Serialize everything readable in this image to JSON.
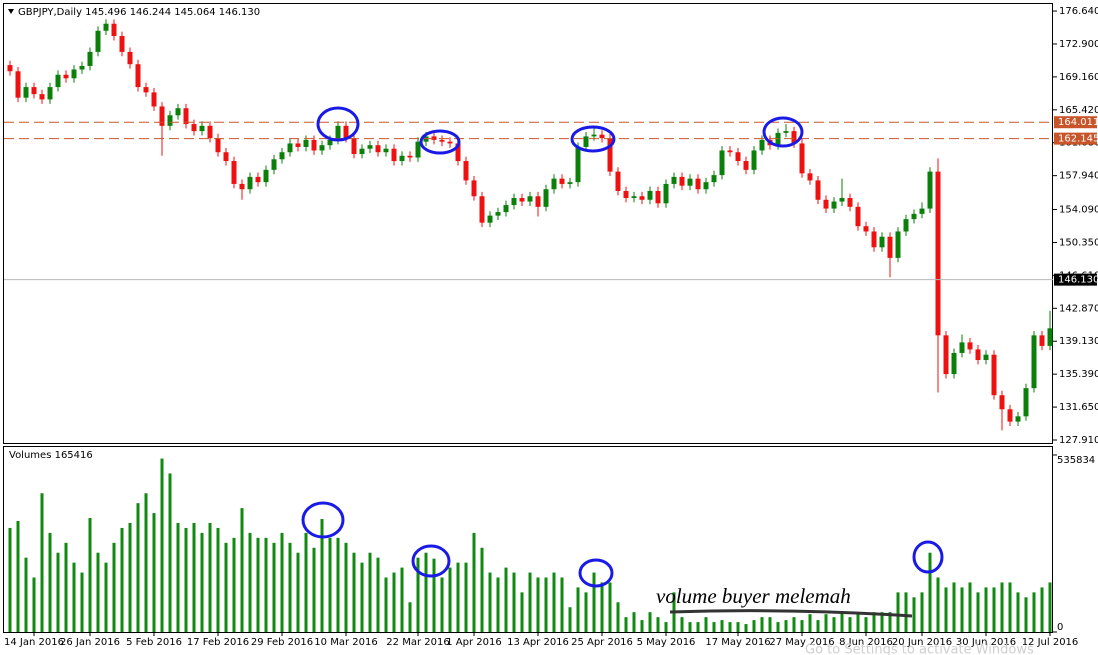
{
  "chart_data": {
    "type": "candlestick",
    "title": "GBPJPY,Daily  145.496 146.244 145.064 146.130",
    "categories": [
      null,
      null,
      null,
      "14 Jan 2016",
      null,
      null,
      null,
      null,
      null,
      null,
      "26 Jan 2016",
      null,
      null,
      null,
      null,
      null,
      null,
      null,
      "5 Feb 2016",
      null,
      null,
      null,
      null,
      null,
      null,
      null,
      "17 Feb 2016",
      null,
      null,
      null,
      null,
      null,
      null,
      null,
      "29 Feb 2016",
      null,
      null,
      null,
      null,
      null,
      null,
      null,
      "10 Mar 2016",
      null,
      null,
      null,
      null,
      null,
      null,
      null,
      null,
      "22 Mar 2016",
      null,
      null,
      null,
      null,
      null,
      null,
      "1 Apr 2016",
      null,
      null,
      null,
      null,
      null,
      null,
      null,
      "13 Apr 2016",
      null,
      null,
      null,
      null,
      null,
      null,
      null,
      "25 Apr 2016",
      null,
      null,
      null,
      null,
      null,
      null,
      null,
      "5 May 2016",
      null,
      null,
      null,
      null,
      null,
      null,
      null,
      null,
      "17 May 2016",
      null,
      null,
      null,
      null,
      null,
      null,
      null,
      "27 May 2016",
      null,
      null,
      null,
      null,
      null,
      null,
      null,
      "8 Jun 2016",
      null,
      null,
      null,
      null,
      null,
      null,
      "20 Jun 2016",
      null,
      null,
      null,
      null,
      null,
      null,
      null,
      "30 Jun 2016",
      null,
      null,
      null,
      null,
      null,
      null,
      null,
      "12 Jul 2016"
    ],
    "open": [
      170.5,
      169.8,
      166.8,
      168.0,
      167.2,
      166.6,
      168.0,
      169.4,
      169.0,
      170.0,
      170.4,
      172.0,
      174.4,
      175.2,
      173.8,
      172.0,
      170.6,
      168.0,
      167.4,
      165.8,
      163.6,
      164.8,
      165.6,
      163.8,
      163.0,
      163.6,
      162.2,
      160.6,
      159.6,
      157.0,
      156.4,
      157.8,
      157.2,
      158.6,
      159.8,
      160.6,
      161.6,
      161.2,
      162.0,
      160.8,
      161.4,
      162.0,
      163.6,
      162.2,
      160.4,
      161.0,
      161.4,
      160.6,
      161.0,
      159.6,
      160.2,
      160.0,
      161.8,
      162.4,
      162.0,
      161.8,
      161.6,
      159.6,
      157.4,
      155.6,
      152.6,
      153.4,
      153.8,
      154.6,
      155.4,
      155.0,
      155.6,
      154.4,
      156.4,
      157.6,
      157.0,
      157.2,
      161.2,
      162.4,
      162.6,
      162.2,
      158.4,
      156.2,
      155.4,
      155.6,
      155.2,
      156.2,
      154.8,
      157.0,
      157.8,
      156.8,
      157.6,
      156.4,
      157.2,
      158.0,
      160.8,
      160.6,
      159.6,
      158.6,
      160.8,
      162.0,
      161.4,
      162.8,
      163.0,
      161.6,
      158.2,
      157.4,
      155.2,
      154.2,
      155.0,
      155.4,
      154.4,
      152.2,
      151.6,
      149.8,
      151.0,
      148.6,
      151.6,
      153.0,
      153.6,
      154.2,
      158.4,
      139.8,
      135.4,
      137.8,
      139.0,
      138.2,
      137.0,
      137.6,
      133.0,
      131.4,
      130.0,
      130.6,
      133.8,
      139.8,
      138.6
    ],
    "high": [
      171.0,
      170.3,
      168.5,
      168.5,
      167.7,
      168.5,
      169.9,
      169.9,
      170.5,
      170.9,
      172.5,
      174.9,
      175.7,
      175.7,
      174.3,
      172.5,
      171.1,
      168.5,
      167.9,
      166.3,
      165.3,
      166.1,
      166.1,
      164.3,
      164.1,
      164.1,
      162.7,
      161.1,
      160.1,
      157.5,
      158.3,
      158.3,
      159.1,
      160.3,
      161.1,
      162.1,
      162.1,
      162.5,
      162.5,
      161.9,
      162.5,
      164.1,
      164.1,
      162.7,
      161.5,
      161.9,
      161.9,
      161.5,
      161.5,
      160.7,
      160.7,
      162.3,
      162.9,
      162.9,
      162.5,
      162.3,
      162.1,
      160.1,
      157.9,
      156.1,
      153.9,
      154.3,
      155.1,
      155.9,
      155.9,
      156.1,
      156.1,
      156.9,
      158.1,
      158.1,
      157.7,
      161.7,
      162.9,
      163.3,
      163.1,
      162.7,
      158.9,
      156.7,
      156.1,
      156.1,
      156.7,
      156.7,
      157.5,
      158.3,
      158.3,
      158.1,
      158.1,
      157.7,
      158.5,
      161.3,
      161.3,
      161.1,
      160.1,
      161.3,
      162.5,
      162.5,
      163.3,
      163.8,
      163.5,
      162.1,
      158.7,
      157.9,
      155.7,
      155.5,
      157.6,
      155.9,
      154.9,
      152.7,
      152.1,
      151.5,
      151.5,
      152.1,
      153.5,
      154.1,
      154.9,
      158.9,
      159.9,
      140.3,
      138.3,
      139.9,
      139.5,
      138.7,
      138.1,
      138.1,
      133.5,
      131.9,
      131.1,
      134.3,
      140.3,
      140.3,
      142.6
    ],
    "low": [
      169.3,
      166.3,
      166.3,
      166.7,
      166.1,
      166.1,
      167.5,
      168.5,
      168.5,
      169.5,
      169.9,
      171.5,
      173.9,
      173.3,
      171.5,
      170.1,
      167.5,
      166.9,
      165.3,
      160.2,
      163.1,
      164.3,
      163.3,
      162.5,
      162.5,
      161.7,
      160.1,
      159.1,
      156.5,
      155.2,
      155.9,
      156.7,
      156.7,
      158.1,
      159.3,
      160.1,
      160.7,
      160.7,
      160.3,
      160.3,
      160.9,
      161.5,
      161.7,
      159.9,
      159.9,
      160.5,
      160.1,
      160.1,
      159.1,
      159.1,
      159.5,
      159.5,
      161.3,
      161.5,
      161.3,
      161.1,
      159.1,
      156.9,
      155.1,
      152.1,
      152.1,
      152.9,
      153.3,
      154.1,
      154.5,
      154.5,
      153.3,
      153.9,
      155.9,
      156.5,
      156.5,
      156.7,
      160.7,
      161.9,
      161.7,
      157.9,
      155.7,
      154.9,
      154.9,
      154.7,
      154.7,
      154.3,
      154.3,
      156.5,
      156.3,
      156.3,
      155.9,
      155.9,
      156.7,
      157.5,
      160.1,
      159.1,
      158.1,
      158.1,
      160.3,
      160.9,
      160.9,
      162.3,
      161.1,
      157.7,
      156.9,
      154.7,
      153.7,
      153.7,
      154.5,
      153.9,
      151.7,
      151.1,
      149.3,
      149.3,
      146.4,
      148.1,
      151.1,
      152.5,
      153.1,
      153.7,
      133.3,
      134.9,
      134.9,
      137.3,
      137.7,
      136.5,
      136.5,
      132.5,
      129.0,
      129.5,
      129.5,
      130.1,
      133.3,
      138.1,
      138.1
    ],
    "close": [
      169.8,
      166.8,
      168.0,
      167.2,
      166.6,
      168.0,
      169.4,
      169.0,
      170.0,
      170.4,
      172.0,
      174.4,
      175.2,
      173.8,
      172.0,
      170.6,
      168.0,
      167.4,
      165.8,
      163.6,
      164.8,
      165.6,
      163.8,
      163.0,
      163.6,
      162.2,
      160.6,
      159.6,
      157.0,
      156.4,
      157.8,
      157.2,
      158.6,
      159.8,
      160.6,
      161.6,
      161.2,
      162.0,
      160.8,
      161.4,
      162.0,
      163.6,
      162.2,
      160.4,
      161.0,
      161.4,
      160.6,
      161.0,
      159.6,
      160.2,
      160.0,
      161.8,
      162.4,
      162.0,
      161.8,
      161.6,
      159.6,
      157.4,
      155.6,
      152.6,
      153.4,
      153.8,
      154.6,
      155.4,
      155.0,
      155.6,
      154.4,
      156.4,
      157.6,
      157.0,
      157.2,
      161.2,
      162.4,
      162.6,
      162.2,
      158.4,
      156.2,
      155.4,
      155.6,
      155.2,
      156.2,
      154.8,
      157.0,
      157.8,
      156.8,
      157.6,
      156.4,
      157.2,
      158.0,
      160.8,
      160.6,
      159.6,
      158.6,
      160.8,
      162.0,
      161.4,
      162.8,
      163.0,
      161.6,
      158.2,
      157.4,
      155.2,
      154.2,
      155.0,
      155.4,
      154.4,
      152.2,
      151.6,
      149.8,
      151.0,
      148.6,
      151.6,
      153.0,
      153.6,
      154.2,
      158.4,
      139.8,
      135.4,
      137.8,
      139.0,
      138.2,
      137.0,
      137.6,
      133.0,
      131.4,
      130.0,
      130.6,
      133.8,
      139.8,
      138.6,
      140.6
    ],
    "up_color": "#0a7f0a",
    "down_color": "#ee1111",
    "ylim": [
      127.57,
      177.44
    ],
    "yticks": [
      {
        "value": 176.64,
        "label": "176.640"
      },
      {
        "value": 172.9,
        "label": "172.900"
      },
      {
        "value": 169.16,
        "label": "169.160"
      },
      {
        "value": 165.42,
        "label": "165.420"
      },
      {
        "value": 161.68,
        "label": "161.680"
      },
      {
        "value": 157.94,
        "label": "157.940"
      },
      {
        "value": 154.09,
        "label": "154.090"
      },
      {
        "value": 150.35,
        "label": "150.350"
      },
      {
        "value": 146.61,
        "label": "146.610"
      },
      {
        "value": 142.87,
        "label": "142.870"
      },
      {
        "value": 139.13,
        "label": "139.130"
      },
      {
        "value": 135.39,
        "label": "135.390"
      },
      {
        "value": 131.65,
        "label": "131.650"
      },
      {
        "value": 127.91,
        "label": "127.910"
      }
    ],
    "price_lines": [
      {
        "value": 164.011,
        "color": "#c8552a",
        "dashed": true
      },
      {
        "value": 162.145,
        "color": "#c8552a",
        "dashed": true
      },
      {
        "value": 146.13,
        "label": "146.130",
        "color": "#b8b8b8",
        "dashed": false
      }
    ],
    "volume": {
      "title": "Volumes 165416",
      "color": "#118a11",
      "ylim": [
        0,
        560000
      ],
      "yticks": [
        0,
        535834
      ],
      "values": [
        315000,
        336000,
        225000,
        165000,
        420000,
        300000,
        240000,
        270000,
        210000,
        180000,
        345000,
        240000,
        210000,
        270000,
        315000,
        330000,
        390000,
        420000,
        360000,
        525000,
        480000,
        330000,
        315000,
        330000,
        300000,
        330000,
        315000,
        270000,
        285000,
        375000,
        300000,
        285000,
        285000,
        270000,
        300000,
        270000,
        240000,
        300000,
        255000,
        342000,
        285000,
        285000,
        270000,
        240000,
        210000,
        240000,
        225000,
        165000,
        180000,
        195000,
        90000,
        225000,
        240000,
        222000,
        165000,
        195000,
        210000,
        210000,
        300000,
        255000,
        180000,
        165000,
        195000,
        180000,
        120000,
        180000,
        165000,
        165000,
        180000,
        165000,
        75000,
        135000,
        120000,
        180000,
        150000,
        150000,
        90000,
        45000,
        60000,
        36000,
        60000,
        45000,
        30000,
        120000,
        45000,
        30000,
        30000,
        45000,
        30000,
        36000,
        30000,
        30000,
        24000,
        36000,
        45000,
        45000,
        30000,
        36000,
        45000,
        36000,
        54000,
        36000,
        54000,
        45000,
        60000,
        45000,
        60000,
        45000,
        60000,
        60000,
        60000,
        120000,
        120000,
        105000,
        120000,
        240000,
        165000,
        135000,
        150000,
        135000,
        150000,
        120000,
        135000,
        135000,
        150000,
        150000,
        120000,
        105000,
        120000,
        135000,
        150000
      ]
    },
    "annotation": "volume buyer melemah",
    "watermark": "Go to Settings to activate Windows"
  }
}
